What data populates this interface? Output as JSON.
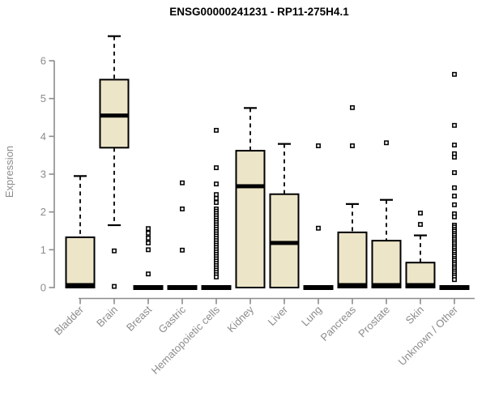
{
  "chart_data": {
    "type": "boxplot",
    "title": "ENSG00000241231 - RP11-275H4.1",
    "ylabel": "Expression",
    "xlabel": "",
    "ylim": [
      0,
      6
    ],
    "yticks": [
      0,
      1,
      2,
      3,
      4,
      5,
      6
    ],
    "grid": "off",
    "legend": "none",
    "categories": [
      "Bladder",
      "Brain",
      "Breast",
      "Gastric",
      "Hematopoietic cells",
      "Kidney",
      "Liver",
      "Lung",
      "Pancreas",
      "Prostate",
      "Skin",
      "Unknown / Other"
    ],
    "boxes": [
      {
        "category": "Bladder",
        "whisker_low": 0,
        "q1": 0,
        "median": 0.04,
        "q3": 1.33,
        "whisker_high": 2.95,
        "outliers": []
      },
      {
        "category": "Brain",
        "whisker_low": 1.65,
        "q1": 3.7,
        "median": 4.55,
        "q3": 5.5,
        "whisker_high": 6.65,
        "outliers": [
          0.97,
          0.03
        ]
      },
      {
        "category": "Breast",
        "whisker_low": 0,
        "q1": 0,
        "median": 0,
        "q3": 0,
        "whisker_high": 0,
        "outliers": [
          1.56,
          1.44,
          1.31,
          1.18,
          1.0,
          0.36
        ]
      },
      {
        "category": "Gastric",
        "whisker_low": 0,
        "q1": 0,
        "median": 0,
        "q3": 0,
        "whisker_high": 0,
        "outliers": [
          2.77,
          2.08,
          0.99
        ]
      },
      {
        "category": "Hematopoietic cells",
        "whisker_low": 0,
        "q1": 0,
        "median": 0,
        "q3": 0,
        "whisker_high": 0,
        "outliers": [
          4.16,
          3.17,
          2.74,
          2.46,
          2.36,
          2.25,
          2.08,
          2.02,
          1.96,
          1.9,
          1.84,
          1.78,
          1.72,
          1.66,
          1.6,
          1.54,
          1.48,
          1.42,
          1.36,
          1.3,
          1.24,
          1.18,
          1.12,
          1.06,
          1.0,
          0.94,
          0.88,
          0.82,
          0.76,
          0.7,
          0.64,
          0.58,
          0.52,
          0.46,
          0.4,
          0.34,
          0.28
        ]
      },
      {
        "category": "Kidney",
        "whisker_low": 0,
        "q1": 0,
        "median": 2.68,
        "q3": 3.62,
        "whisker_high": 4.75,
        "outliers": []
      },
      {
        "category": "Liver",
        "whisker_low": 0,
        "q1": 0,
        "median": 1.18,
        "q3": 2.47,
        "whisker_high": 3.8,
        "outliers": []
      },
      {
        "category": "Lung",
        "whisker_low": 0,
        "q1": 0,
        "median": 0,
        "q3": 0,
        "whisker_high": 0,
        "outliers": [
          3.75,
          1.57
        ]
      },
      {
        "category": "Pancreas",
        "whisker_low": 0,
        "q1": 0,
        "median": 0.04,
        "q3": 1.46,
        "whisker_high": 2.21,
        "outliers": [
          4.76,
          3.75
        ]
      },
      {
        "category": "Prostate",
        "whisker_low": 0,
        "q1": 0,
        "median": 0.04,
        "q3": 1.24,
        "whisker_high": 2.32,
        "outliers": [
          3.83
        ]
      },
      {
        "category": "Skin",
        "whisker_low": 0,
        "q1": 0,
        "median": 0.04,
        "q3": 0.66,
        "whisker_high": 1.38,
        "outliers": [
          1.97,
          1.67
        ]
      },
      {
        "category": "Unknown / Other",
        "whisker_low": 0,
        "q1": 0,
        "median": 0,
        "q3": 0,
        "whisker_high": 0,
        "outliers": [
          5.64,
          4.29,
          3.77,
          3.54,
          3.45,
          3.04,
          2.64,
          2.42,
          2.19,
          1.95,
          1.87,
          1.65,
          1.6,
          1.54,
          1.49,
          1.43,
          1.38,
          1.32,
          1.27,
          1.21,
          1.16,
          1.1,
          1.05,
          0.99,
          0.94,
          0.88,
          0.83,
          0.77,
          0.72,
          0.66,
          0.61,
          0.55,
          0.5,
          0.44,
          0.39,
          0.33,
          0.28,
          0.21
        ]
      }
    ],
    "colors": {
      "box_fill": "#ece5c8",
      "box_border": "#000000",
      "median": "#000000",
      "whisker": "#000000",
      "outlier_stroke": "#000000",
      "outlier_fill": "#ffffff",
      "axis": "#8c8c8c",
      "tick_label": "#8c8c8c",
      "title": "#000000"
    }
  }
}
